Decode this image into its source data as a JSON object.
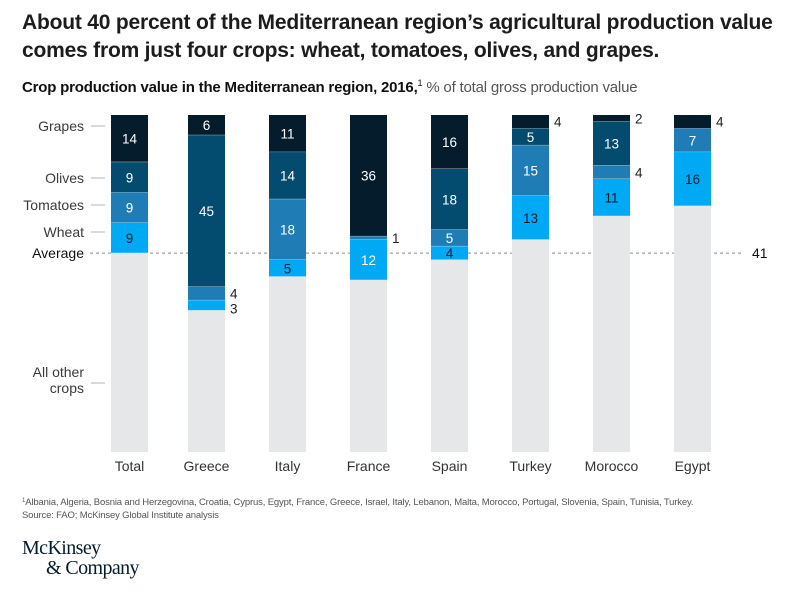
{
  "header": {
    "title": "About 40 percent of the Mediterranean region’s agricultural production value comes from just four crops: wheat, tomatoes, olives, and grapes.",
    "subtitle_bold": "Crop production value in the Mediterranean region, 2016,",
    "subtitle_sup": "1",
    "subtitle_unit": " % of total gross production value"
  },
  "chart_data": {
    "type": "bar",
    "stacked": true,
    "title": "Crop production value in the Mediterranean region, 2016",
    "xlabel": "",
    "ylabel": "% of total gross production value",
    "ylim": [
      0,
      100
    ],
    "grid": false,
    "categories": [
      "Total",
      "Greece",
      "Italy",
      "France",
      "Spain",
      "Turkey",
      "Morocco",
      "Egypt"
    ],
    "stack_order_top_to_bottom": [
      "Grapes",
      "Olives",
      "Tomatoes",
      "Wheat",
      "All other crops"
    ],
    "series": [
      {
        "name": "Grapes",
        "color": "#051c2c",
        "label_color": "#ffffff",
        "values": [
          14,
          6,
          11,
          36,
          16,
          4,
          2,
          4
        ]
      },
      {
        "name": "Olives",
        "color": "#034b6f",
        "label_color": "#ffffff",
        "values": [
          9,
          45,
          14,
          0,
          18,
          5,
          13,
          0
        ]
      },
      {
        "name": "Tomatoes",
        "color": "#1f7cb4",
        "label_color": "#ffffff",
        "values": [
          9,
          4,
          18,
          1,
          5,
          15,
          4,
          7
        ]
      },
      {
        "name": "Wheat",
        "color": "#00a9f4",
        "label_color": "#051c2c",
        "values": [
          9,
          3,
          5,
          12,
          4,
          13,
          11,
          16
        ]
      },
      {
        "name": "All other crops",
        "color": "#e6e7e9",
        "label_color": "",
        "values": [
          59,
          42,
          52,
          51,
          57,
          63,
          70,
          73
        ]
      }
    ],
    "label_color_overrides": [
      {
        "category": "France",
        "series": "Wheat",
        "color": "#ffffff"
      }
    ],
    "outside_labels": [
      {
        "category": "Greece",
        "series": "Tomatoes"
      },
      {
        "category": "Greece",
        "series": "Wheat"
      },
      {
        "category": "France",
        "series": "Tomatoes"
      },
      {
        "category": "Turkey",
        "series": "Grapes"
      },
      {
        "category": "Morocco",
        "series": "Grapes"
      },
      {
        "category": "Morocco",
        "series": "Tomatoes"
      },
      {
        "category": "Egypt",
        "series": "Grapes"
      }
    ],
    "average": {
      "label": "Average",
      "value": 41,
      "value_label": "41"
    },
    "y_axis_labels": [
      {
        "series": "Grapes",
        "lines": [
          "Grapes"
        ]
      },
      {
        "series": "Olives",
        "lines": [
          "Olives"
        ]
      },
      {
        "series": "Tomatoes",
        "lines": [
          "Tomatoes"
        ]
      },
      {
        "series": "Wheat",
        "lines": [
          "Wheat"
        ]
      },
      {
        "series": "All other crops",
        "lines": [
          "All other",
          "crops"
        ]
      }
    ]
  },
  "footnote": {
    "marker": "1",
    "text": "Albania, Algeria, Bosnia and Herzegovina, Croatia, Cyprus, Egypt, France, Greece, Israel, Italy, Lebanon, Malta, Morocco, Portugal, Slovenia, Spain, Tunisia, Turkey."
  },
  "source": "Source: FAO; McKinsey Global Institute analysis",
  "logo": {
    "line1": "McKinsey",
    "line2": "& Company"
  }
}
